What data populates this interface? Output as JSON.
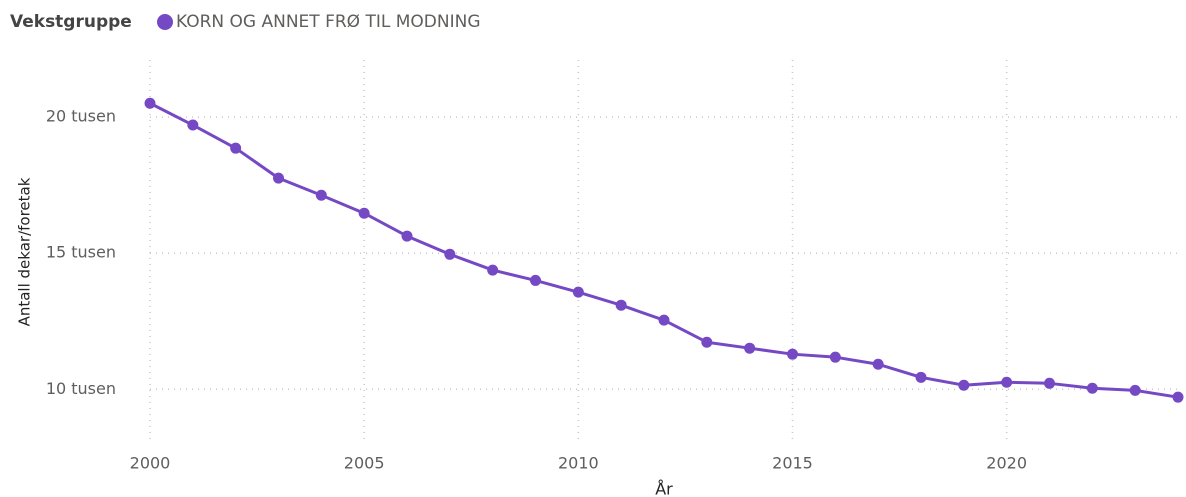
{
  "chart_data": {
    "type": "line",
    "legend_title": "Vekstgruppe",
    "x_label": "År",
    "y_label": "Antall dekar/foretak",
    "x": [
      2000,
      2001,
      2002,
      2003,
      2004,
      2005,
      2006,
      2007,
      2008,
      2009,
      2010,
      2011,
      2012,
      2013,
      2014,
      2015,
      2016,
      2017,
      2018,
      2019,
      2020,
      2021,
      2022,
      2023,
      2024
    ],
    "series": [
      {
        "name": "KORN OG ANNET FRØ TIL MODNING",
        "color": "#7649c4",
        "values": [
          20510,
          19710,
          18860,
          17760,
          17130,
          16470,
          15630,
          14960,
          14380,
          14000,
          13570,
          13090,
          12540,
          11730,
          11510,
          11290,
          11180,
          10920,
          10440,
          10150,
          10260,
          10220,
          10040,
          9960,
          9710
        ]
      }
    ],
    "xlim": [
      2000,
      2024
    ],
    "xticks": [
      2000,
      2005,
      2010,
      2015,
      2020
    ],
    "ylim": [
      8100,
      22100
    ],
    "yticks": [
      {
        "value": 10000,
        "label": "10 tusen"
      },
      {
        "value": 15000,
        "label": "15 tusen"
      },
      {
        "value": 20000,
        "label": "20 tusen"
      }
    ],
    "grid": true
  }
}
